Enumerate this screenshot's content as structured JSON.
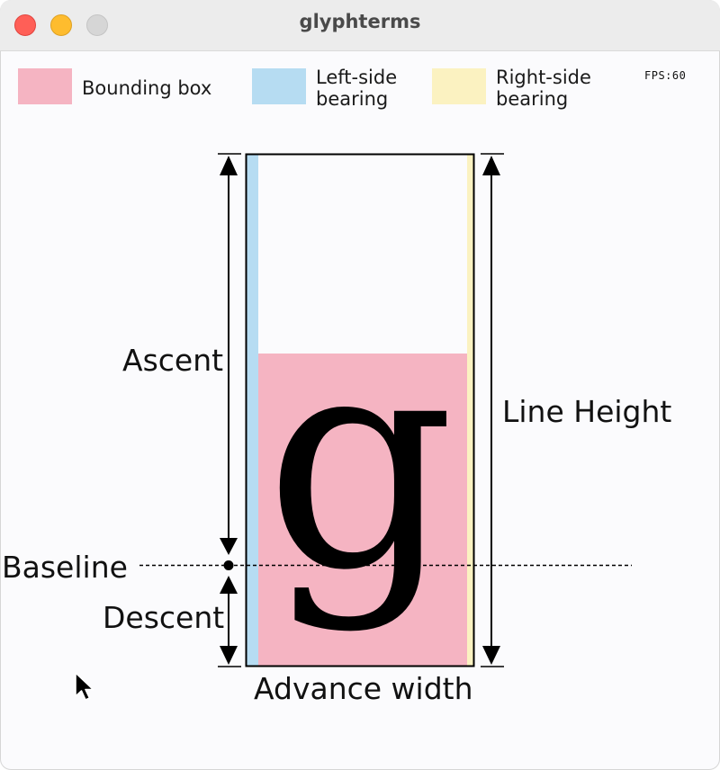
{
  "window": {
    "title": "glyphterms"
  },
  "legend": {
    "items": [
      {
        "label": "Bounding box",
        "color": "#f5b4c2"
      },
      {
        "label": "Left-side bearing",
        "color": "#b6dcf2"
      },
      {
        "label": "Right-side bearing",
        "color": "#fbf2c1"
      }
    ]
  },
  "fps": {
    "text": "FPS:60"
  },
  "diagram": {
    "glyph": "g",
    "ascent_label": "Ascent",
    "descent_label": "Descent",
    "baseline_label": "Baseline",
    "line_height_label": "Line Height",
    "advance_width_label": "Advance width"
  }
}
